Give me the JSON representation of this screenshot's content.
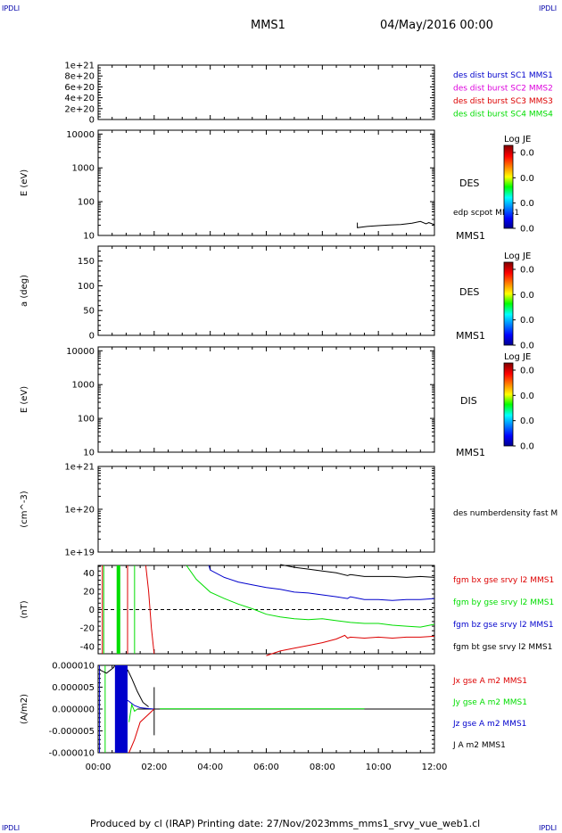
{
  "corner_labels": {
    "top_left": "IPDLI",
    "top_right": "IPDLI",
    "bottom_left": "IPDLI",
    "bottom_right": "IPDLI"
  },
  "header": {
    "spacecraft": "MMS1",
    "datetime": "04/May/2016 00:00"
  },
  "footer": {
    "produced_by": "Produced by cl (IRAP)",
    "printing_date": "Printing date: 27/Nov/2023",
    "script_name": "mms_mms1_srvy_vue_web1.cl"
  },
  "colors": {
    "black": "#000000",
    "red": "#dd0000",
    "green": "#00dd00",
    "blue": "#0000cc",
    "magenta": "#dd00dd"
  },
  "x_axis": {
    "ticks": [
      "00:00",
      "02:00",
      "04:00",
      "06:00",
      "08:00",
      "10:00",
      "12:00"
    ],
    "range_hours": [
      0,
      12
    ]
  },
  "chart_data": [
    {
      "type": "line",
      "id": "des-dist-burst",
      "ylabel": "",
      "ylim": [
        0,
        1e+21
      ],
      "ytick_labels": [
        "1e+21",
        "8e+20",
        "6e+20",
        "4e+20",
        "2e+20",
        "0"
      ],
      "reference_line": 0,
      "legend": [
        {
          "text": "des dist burst SC1 MMS1",
          "color": "#0000cc"
        },
        {
          "text": "des dist burst SC2 MMS2",
          "color": "#dd00dd"
        },
        {
          "text": "des dist burst SC3 MMS3",
          "color": "#dd0000"
        },
        {
          "text": "des dist burst SC4 MMS4",
          "color": "#00dd00"
        }
      ]
    },
    {
      "type": "heatmap",
      "id": "des-energy",
      "ylabel": "E (eV)",
      "yscale": "log",
      "ylim": [
        10,
        13000
      ],
      "ytick_labels": [
        "10000",
        "1000",
        "100",
        "10"
      ],
      "right_label": "DES",
      "bottom_label": "MMS1",
      "colorbar": {
        "title": "Log JE",
        "tick_labels": [
          "0.0",
          "0.0",
          "0.0",
          "0.0"
        ]
      },
      "overlay_label": "edp scpot MMS1",
      "overlay": {
        "name": "edp scpot MMS1",
        "color": "#000000",
        "x_hours": [
          9.25,
          9.25,
          9.6,
          10.0,
          10.4,
          10.8,
          11.2,
          11.5,
          11.7,
          11.8,
          12.0
        ],
        "y": [
          24,
          17,
          18.5,
          19.5,
          20.5,
          21,
          23,
          26,
          22,
          24,
          21
        ]
      }
    },
    {
      "type": "heatmap",
      "id": "des-pitch",
      "ylabel": "a (deg)",
      "ylim": [
        0,
        180
      ],
      "ytick_labels": [
        "150",
        "100",
        "50",
        "0"
      ],
      "right_label": "DES",
      "bottom_label": "MMS1",
      "colorbar": {
        "title": "Log JE",
        "tick_labels": [
          "0.0",
          "0.0",
          "0.0",
          "0.0"
        ]
      }
    },
    {
      "type": "heatmap",
      "id": "dis-energy",
      "ylabel": "E (eV)",
      "yscale": "log",
      "ylim": [
        10,
        13000
      ],
      "ytick_labels": [
        "10000",
        "1000",
        "100",
        "10"
      ],
      "right_label": "DIS",
      "bottom_label": "MMS1",
      "colorbar": {
        "title": "Log JE",
        "tick_labels": [
          "0.0",
          "0.0",
          "0.0",
          "0.0"
        ]
      }
    },
    {
      "type": "line",
      "id": "density",
      "ylabel": "(cm^-3)",
      "yscale": "log",
      "ylim": [
        1e+19,
        1e+21
      ],
      "ytick_labels": [
        "1e+21",
        "1e+20",
        "1e+19"
      ],
      "legend": [
        {
          "text": "des numberdensity fast M",
          "color": "#000000"
        }
      ]
    },
    {
      "type": "line",
      "id": "fgm",
      "ylabel": "(nT)",
      "ylim": [
        -48,
        48
      ],
      "ytick_labels": [
        "40",
        "20",
        "0",
        "-20",
        "-40"
      ],
      "reference_line": 0,
      "legend": [
        {
          "text": "fgm bx gse srvy l2 MMS1",
          "color": "#dd0000"
        },
        {
          "text": "fgm by gse srvy l2 MMS1",
          "color": "#00dd00"
        },
        {
          "text": "fgm bz gse srvy l2 MMS1",
          "color": "#0000cc"
        },
        {
          "text": "fgm bt gse srvy l2 MMS1",
          "color": "#000000"
        }
      ],
      "series": [
        {
          "name": "fgm bt gse srvy l2 MMS1",
          "color": "#000000",
          "x": [
            6.5,
            7.0,
            7.5,
            8.0,
            8.5,
            8.9,
            9.0,
            9.5,
            10.0,
            10.5,
            11.0,
            11.5,
            12.0
          ],
          "y": [
            49,
            46,
            44,
            42,
            40,
            37,
            38,
            36,
            36,
            36,
            35,
            36,
            35
          ]
        },
        {
          "name": "fgm bz gse srvy l2 MMS1",
          "color": "#0000cc",
          "x": [
            3.95,
            4.0,
            4.5,
            5.0,
            5.5,
            6.0,
            6.5,
            7.0,
            7.5,
            8.0,
            8.5,
            8.9,
            9.0,
            9.5,
            10.0,
            10.5,
            11.0,
            11.5,
            12.0
          ],
          "y": [
            48,
            43,
            35,
            30,
            27,
            24,
            22,
            19,
            18,
            16,
            14,
            12,
            14,
            11,
            11,
            10,
            11,
            11,
            12
          ]
        },
        {
          "name": "fgm by gse srvy l2 MMS1",
          "color": "#00dd00",
          "x": [
            3.15,
            3.5,
            4.0,
            4.5,
            5.0,
            5.5,
            6.0,
            6.5,
            7.0,
            7.5,
            8.0,
            8.5,
            9.0,
            9.5,
            10.0,
            10.5,
            11.0,
            11.5,
            12.0
          ],
          "y": [
            48,
            33,
            19,
            12,
            6,
            1,
            -5,
            -8,
            -10,
            -11,
            -10,
            -12,
            -14,
            -15,
            -15,
            -17,
            -18,
            -19,
            -16
          ]
        },
        {
          "name": "fgm bx gse srvy l2 MMS1",
          "color": "#dd0000",
          "x": [
            6.0,
            6.5,
            7.0,
            7.5,
            8.0,
            8.5,
            8.8,
            8.9,
            9.0,
            9.5,
            10.0,
            10.5,
            11.0,
            11.5,
            12.0
          ],
          "y": [
            -50,
            -45,
            -42,
            -39,
            -36,
            -32,
            -28,
            -31,
            -30,
            -31,
            -30,
            -31,
            -30,
            -30,
            -29
          ]
        }
      ]
    },
    {
      "type": "line",
      "id": "current",
      "ylabel": "(A/m2)",
      "ylim": [
        -1e-05,
        1e-05
      ],
      "ytick_labels": [
        "0.000010",
        "0.000005",
        "0.000000",
        "-0.000005",
        "-0.000010"
      ],
      "legend": [
        {
          "text": "Jx gse A m2 MMS1",
          "color": "#dd0000"
        },
        {
          "text": "Jy gse A m2 MMS1",
          "color": "#00dd00"
        },
        {
          "text": "Jz gse A m2 MMS1",
          "color": "#0000cc"
        },
        {
          "text": "J A m2 MMS1",
          "color": "#000000"
        }
      ]
    }
  ]
}
